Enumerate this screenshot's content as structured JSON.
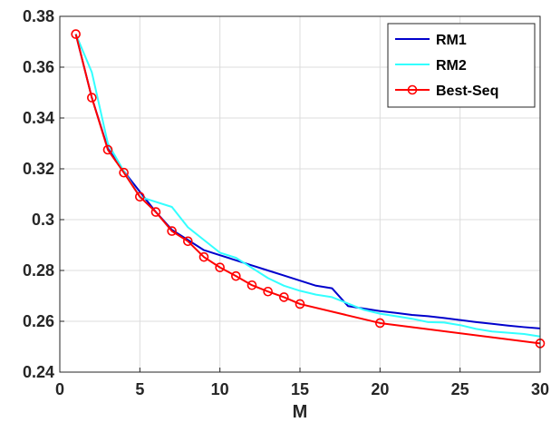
{
  "chart_data": {
    "type": "line",
    "xlabel": "M",
    "ylabel": "",
    "xlim": [
      0,
      30
    ],
    "ylim": [
      0.24,
      0.38
    ],
    "xticks": [
      0,
      5,
      10,
      15,
      20,
      25,
      30
    ],
    "yticks": [
      0.24,
      0.26,
      0.28,
      0.3,
      0.32,
      0.34,
      0.36,
      0.38
    ],
    "xtick_labels": [
      "0",
      "5",
      "10",
      "15",
      "20",
      "25",
      "30"
    ],
    "ytick_labels": [
      "0.24",
      "0.26",
      "0.28",
      "0.3",
      "0.32",
      "0.34",
      "0.36",
      "0.38"
    ],
    "grid": true,
    "legend_position": "top-right",
    "series": [
      {
        "name": "RM1",
        "color": "#0000cc",
        "marker": "none",
        "x": [
          1,
          2,
          3,
          4,
          5,
          6,
          7,
          8,
          9,
          10,
          11,
          12,
          13,
          14,
          15,
          16,
          17,
          18,
          19,
          20,
          21,
          22,
          23,
          24,
          25,
          26,
          27,
          28,
          29,
          30
        ],
        "y": [
          0.373,
          0.348,
          0.328,
          0.319,
          0.311,
          0.303,
          0.296,
          0.292,
          0.288,
          0.286,
          0.284,
          0.282,
          0.28,
          0.278,
          0.276,
          0.274,
          0.273,
          0.266,
          0.265,
          0.264,
          0.2633,
          0.2625,
          0.262,
          0.2613,
          0.2605,
          0.2597,
          0.259,
          0.2583,
          0.2577,
          0.2572
        ]
      },
      {
        "name": "RM2",
        "color": "#33ffff",
        "marker": "none",
        "x": [
          1,
          2,
          3,
          4,
          5,
          6,
          7,
          8,
          9,
          10,
          11,
          12,
          13,
          14,
          15,
          16,
          17,
          18,
          19,
          20,
          21,
          22,
          23,
          24,
          25,
          26,
          27,
          28,
          29,
          30
        ],
        "y": [
          0.373,
          0.358,
          0.33,
          0.319,
          0.309,
          0.307,
          0.305,
          0.297,
          0.292,
          0.287,
          0.285,
          0.281,
          0.277,
          0.274,
          0.272,
          0.2705,
          0.2695,
          0.267,
          0.2645,
          0.263,
          0.262,
          0.261,
          0.2597,
          0.2595,
          0.2585,
          0.257,
          0.256,
          0.2555,
          0.255,
          0.254
        ]
      },
      {
        "name": "Best-Seq",
        "color": "#ff0000",
        "marker": "circle",
        "x": [
          1,
          2,
          3,
          4,
          5,
          6,
          7,
          8,
          9,
          10,
          11,
          12,
          13,
          14,
          15,
          20,
          30
        ],
        "y": [
          0.373,
          0.348,
          0.3275,
          0.3185,
          0.309,
          0.303,
          0.2955,
          0.2915,
          0.2853,
          0.2812,
          0.2778,
          0.2742,
          0.2717,
          0.2695,
          0.2668,
          0.2593,
          0.2513
        ]
      }
    ]
  }
}
